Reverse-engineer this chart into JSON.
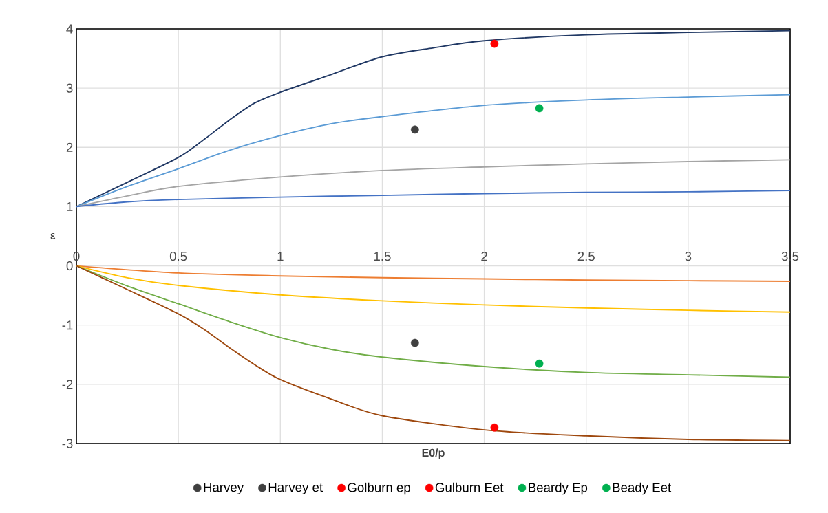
{
  "chart_data": {
    "type": "line",
    "xlabel": "E0/p",
    "ylabel": "ε",
    "xlim": [
      0,
      3.5
    ],
    "ylim": [
      -3,
      4
    ],
    "xticks": [
      0,
      0.5,
      1,
      1.5,
      2,
      2.5,
      3,
      3.5
    ],
    "yticks": [
      -3,
      -2,
      -1,
      0,
      1,
      2,
      3,
      4
    ],
    "grid": true,
    "legend": "bottom",
    "line_style": "solid",
    "series": [
      {
        "color": "#203864",
        "x": [
          0,
          0.25,
          0.5,
          0.625,
          0.75,
          0.875,
          1,
          1.25,
          1.5,
          1.75,
          2,
          2.5,
          3,
          3.5
        ],
        "values": [
          1,
          1.41,
          1.83,
          2.13,
          2.46,
          2.75,
          2.93,
          3.23,
          3.53,
          3.68,
          3.8,
          3.9,
          3.94,
          3.97
        ]
      },
      {
        "color": "#5b9bd5",
        "x": [
          0,
          0.25,
          0.5,
          0.75,
          1,
          1.25,
          1.5,
          2,
          2.5,
          3,
          3.5
        ],
        "values": [
          1,
          1.34,
          1.64,
          1.95,
          2.2,
          2.4,
          2.52,
          2.71,
          2.8,
          2.85,
          2.89
        ]
      },
      {
        "color": "#a5a5a5",
        "x": [
          0,
          0.25,
          0.5,
          1,
          1.5,
          2,
          2.5,
          3,
          3.5
        ],
        "values": [
          1,
          1.18,
          1.34,
          1.5,
          1.61,
          1.67,
          1.72,
          1.76,
          1.79
        ]
      },
      {
        "color": "#4472c4",
        "x": [
          0,
          0.25,
          0.5,
          1,
          1.5,
          2,
          2.5,
          3,
          3.5
        ],
        "values": [
          1,
          1.08,
          1.12,
          1.16,
          1.19,
          1.22,
          1.24,
          1.25,
          1.27
        ]
      },
      {
        "color": "#ed7d31",
        "x": [
          0,
          0.5,
          1,
          1.5,
          2,
          2.5,
          3,
          3.5
        ],
        "values": [
          0,
          -0.12,
          -0.17,
          -0.2,
          -0.22,
          -0.24,
          -0.25,
          -0.26
        ]
      },
      {
        "color": "#ffc000",
        "x": [
          0,
          0.25,
          0.5,
          1,
          1.5,
          2,
          2.5,
          3,
          3.5
        ],
        "values": [
          0,
          -0.2,
          -0.33,
          -0.49,
          -0.59,
          -0.66,
          -0.71,
          -0.75,
          -0.78
        ]
      },
      {
        "color": "#70ad47",
        "x": [
          0,
          0.25,
          0.5,
          0.75,
          1,
          1.25,
          1.5,
          2,
          2.5,
          3,
          3.5
        ],
        "values": [
          0,
          -0.34,
          -0.64,
          -0.94,
          -1.21,
          -1.41,
          -1.54,
          -1.7,
          -1.8,
          -1.84,
          -1.88
        ]
      },
      {
        "color": "#9e480e",
        "x": [
          0,
          0.25,
          0.5,
          0.625,
          0.75,
          0.875,
          1,
          1.25,
          1.5,
          2,
          2.5,
          3,
          3.5
        ],
        "values": [
          0,
          -0.4,
          -0.81,
          -1.07,
          -1.38,
          -1.67,
          -1.92,
          -2.25,
          -2.53,
          -2.77,
          -2.87,
          -2.93,
          -2.95
        ]
      },
      {
        "type": "scatter",
        "name": "Harvey",
        "color": "#404040",
        "x": [
          1.66
        ],
        "values": [
          2.3
        ]
      },
      {
        "type": "scatter",
        "name": "Harvey et",
        "color": "#404040",
        "x": [
          1.66
        ],
        "values": [
          -1.3
        ]
      },
      {
        "type": "scatter",
        "name": "Golburn ep",
        "color": "#ff0000",
        "x": [
          2.05
        ],
        "values": [
          3.75
        ]
      },
      {
        "type": "scatter",
        "name": "Gulburn Eet",
        "color": "#ff0000",
        "x": [
          2.05
        ],
        "values": [
          -2.73
        ]
      },
      {
        "type": "scatter",
        "name": "Beardy Ep",
        "color": "#00b050",
        "x": [
          2.27
        ],
        "values": [
          2.66
        ]
      },
      {
        "type": "scatter",
        "name": "Beady Eet",
        "color": "#00b050",
        "x": [
          2.27
        ],
        "values": [
          -1.65
        ]
      }
    ]
  }
}
